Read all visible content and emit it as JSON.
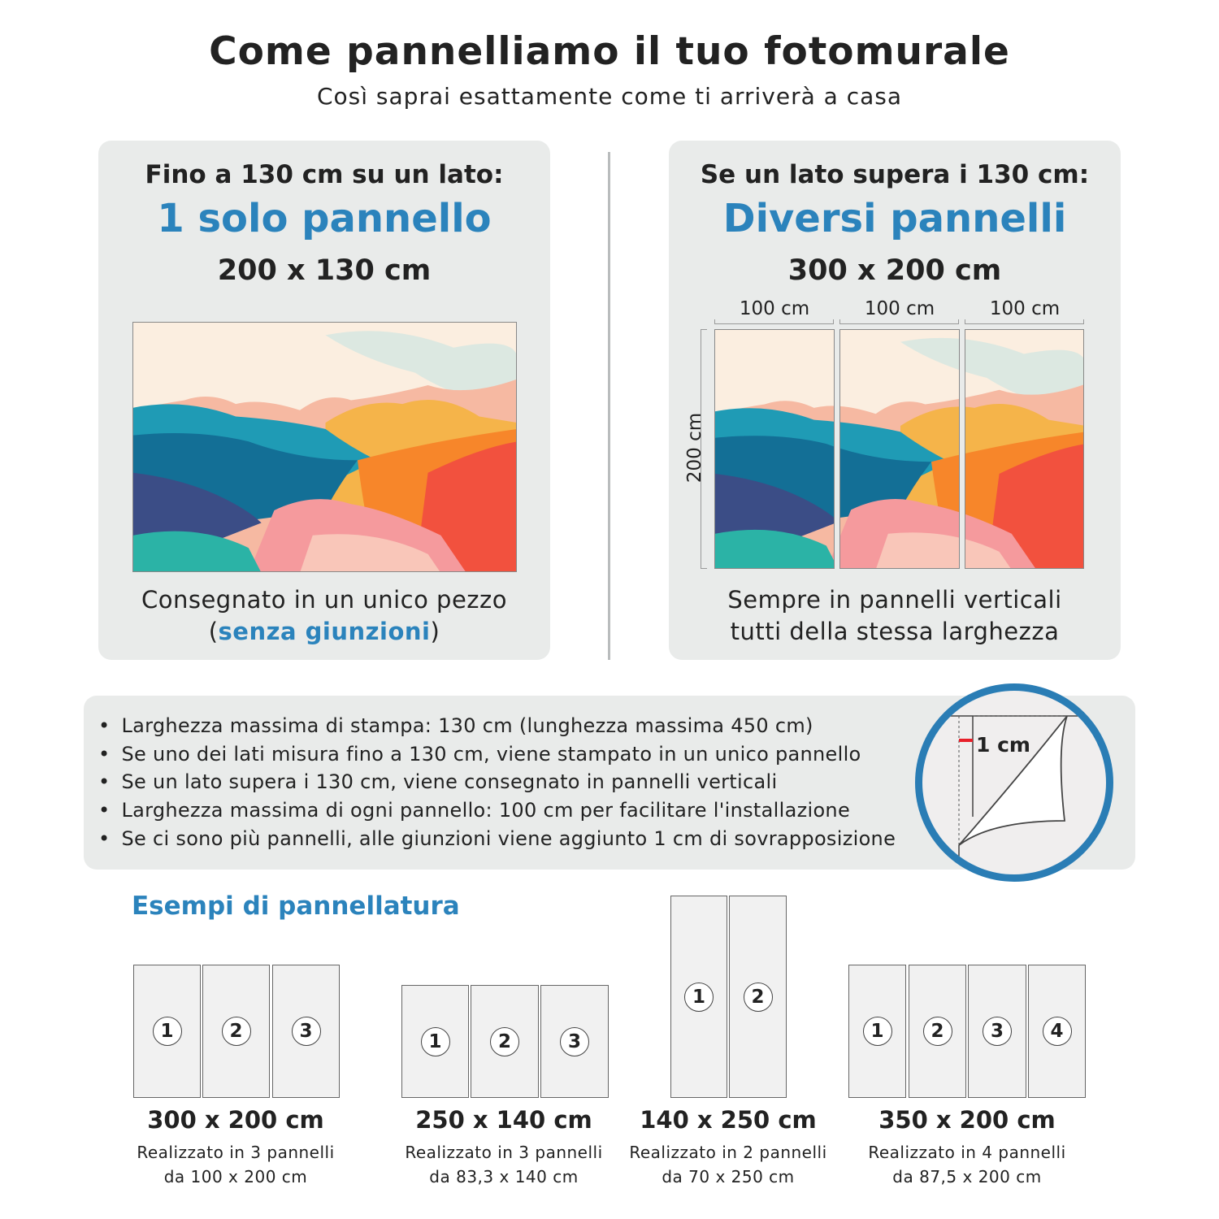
{
  "header": {
    "title": "Come pannelliamo il tuo fotomurale",
    "subtitle": "Così saprai esattamente come ti arriverà a casa"
  },
  "left_card": {
    "condition": "Fino a 130 cm su un lato:",
    "headline": "1 solo pannello",
    "size": "200 x 130 cm",
    "caption_line1": "Consegnato in un unico pezzo",
    "caption_open": "(",
    "caption_highlight": "senza giunzioni",
    "caption_close": ")"
  },
  "right_card": {
    "condition": "Se un lato supera i 130 cm:",
    "headline": "Diversi pannelli",
    "size": "300 x 200 cm",
    "panel_widths": [
      "100 cm",
      "100 cm",
      "100 cm"
    ],
    "height_label": "200 cm",
    "caption_line1": "Sempre in pannelli verticali",
    "caption_line2": "tutti della stessa larghezza"
  },
  "info": {
    "bullets": [
      "Larghezza massima di stampa: 130 cm (lunghezza massima 450 cm)",
      "Se uno dei lati misura fino a 130 cm, viene stampato in un unico pannello",
      "Se un lato supera i 130 cm, viene consegnato in pannelli verticali",
      "Larghezza massima di ogni pannello: 100 cm per facilitare l'installazione",
      "Se ci sono più pannelli, alle giunzioni viene aggiunto 1 cm di sovrapposizione"
    ],
    "overlap_label": "1 cm"
  },
  "examples": {
    "title": "Esempi di pannellatura",
    "items": [
      {
        "size": "300 x 200 cm",
        "line1": "Realizzato in 3 pannelli",
        "line2": "da 100 x 200 cm",
        "panels": [
          "1",
          "2",
          "3"
        ]
      },
      {
        "size": "250 x 140 cm",
        "line1": "Realizzato in 3 pannelli",
        "line2": "da 83,3 x 140 cm",
        "panels": [
          "1",
          "2",
          "3"
        ]
      },
      {
        "size": "140 x 250 cm",
        "line1": "Realizzato in 2 pannelli",
        "line2": "da 70 x 250 cm",
        "panels": [
          "1",
          "2"
        ]
      },
      {
        "size": "350 x 200 cm",
        "line1": "Realizzato in 4 pannelli",
        "line2": "da 87,5 x 200 cm",
        "panels": [
          "1",
          "2",
          "3",
          "4"
        ]
      }
    ]
  },
  "colors": {
    "accent": "#2b83bc",
    "card_bg": "#e9ebea",
    "overlap_marker": "#e8202a"
  }
}
